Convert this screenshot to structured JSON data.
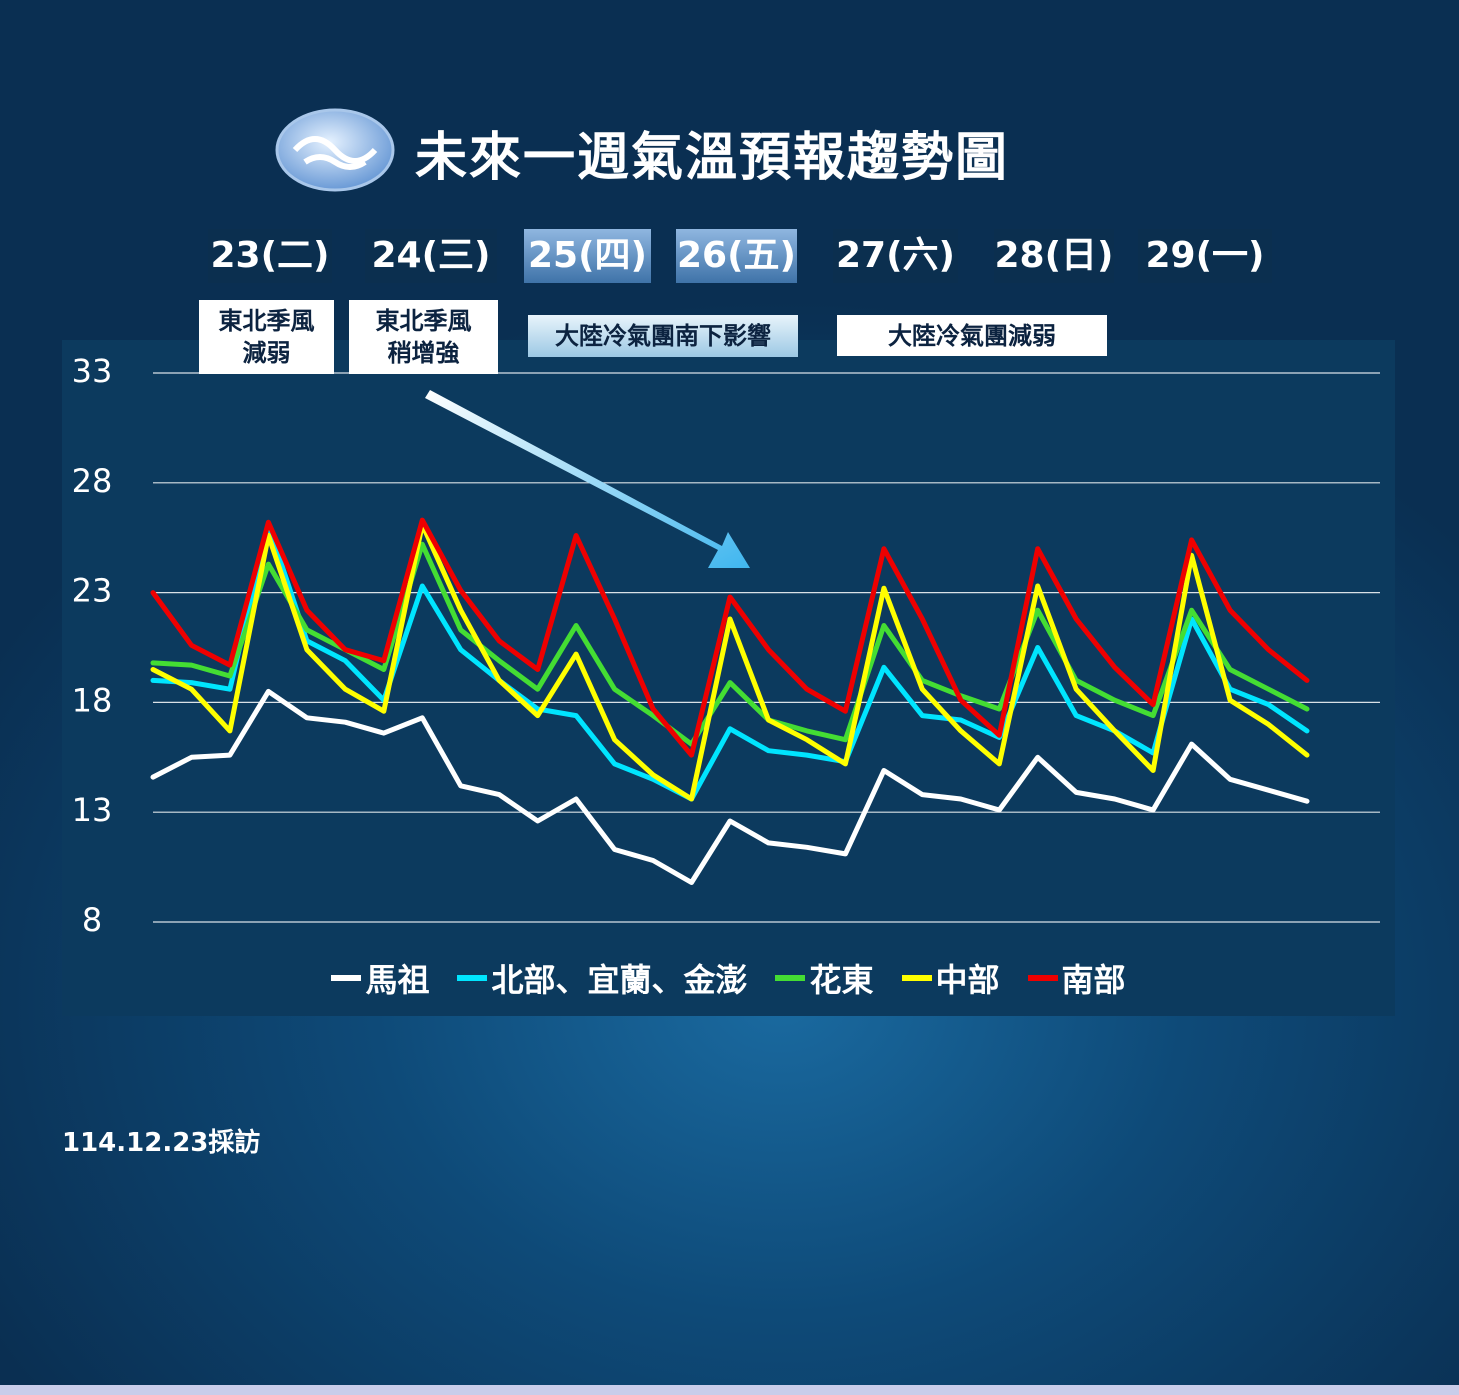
{
  "chart_data": {
    "type": "line",
    "title": "未來一週氣溫預報趨勢圖",
    "day_labels": [
      "23(二)",
      "24(三)",
      "25(四)",
      "26(五)",
      "27(六)",
      "28(日)",
      "29(一)"
    ],
    "annotations": [
      "東北季風\n減弱",
      "東北季風\n稍增強",
      "大陸冷氣團南下影響",
      "大陸冷氣團減弱"
    ],
    "note": "114.12.23採訪",
    "categories": [
      null,
      null,
      null,
      null,
      null,
      null,
      null,
      null,
      null,
      null,
      null,
      null,
      null,
      null,
      null,
      null,
      null,
      null,
      null,
      null,
      null,
      null,
      null,
      null,
      null,
      null,
      null,
      null,
      null,
      null,
      null
    ],
    "ylim": [
      8,
      33
    ],
    "yticks": [
      8,
      13,
      18,
      23,
      28,
      33
    ],
    "grid": true,
    "legend": "bottom",
    "series": [
      {
        "name": "馬祖",
        "color": "#ffffff",
        "values": [
          14.6,
          15.5,
          15.6,
          18.5,
          17.3,
          17.1,
          16.6,
          17.3,
          14.2,
          13.8,
          12.6,
          13.6,
          11.3,
          10.8,
          9.8,
          12.6,
          11.6,
          11.4,
          11.1,
          14.9,
          13.8,
          13.6,
          13.1,
          15.5,
          13.9,
          13.6,
          13.1,
          16.1,
          14.5,
          14.0,
          13.5
        ]
      },
      {
        "name": "北部、宜蘭、金澎",
        "color": "#00e5ff",
        "values": [
          19.0,
          18.9,
          18.6,
          26.1,
          20.8,
          19.9,
          18.1,
          23.3,
          20.4,
          19.0,
          17.7,
          17.4,
          15.2,
          14.5,
          13.6,
          16.8,
          15.8,
          15.6,
          15.3,
          19.6,
          17.4,
          17.2,
          16.4,
          20.5,
          17.4,
          16.7,
          15.7,
          21.8,
          18.6,
          17.9,
          16.7
        ]
      },
      {
        "name": "花東",
        "color": "#44dd33",
        "values": [
          19.8,
          19.7,
          19.2,
          24.3,
          21.3,
          20.4,
          19.5,
          25.2,
          21.3,
          19.9,
          18.6,
          21.5,
          18.6,
          17.4,
          16.1,
          18.9,
          17.2,
          16.7,
          16.3,
          21.5,
          19.0,
          18.3,
          17.7,
          22.2,
          19.0,
          18.1,
          17.4,
          22.2,
          19.5,
          18.6,
          17.7
        ]
      },
      {
        "name": "中部",
        "color": "#ffff00",
        "values": [
          19.5,
          18.6,
          16.7,
          25.6,
          20.4,
          18.6,
          17.6,
          26.1,
          22.2,
          19.0,
          17.4,
          20.2,
          16.3,
          14.7,
          13.6,
          21.8,
          17.2,
          16.3,
          15.2,
          23.2,
          18.6,
          16.7,
          15.2,
          23.3,
          18.6,
          16.7,
          14.9,
          24.7,
          18.1,
          17.0,
          15.6
        ]
      },
      {
        "name": "南部",
        "color": "#ee0000",
        "values": [
          23.0,
          20.6,
          19.7,
          26.2,
          22.2,
          20.4,
          19.9,
          26.3,
          23.1,
          20.8,
          19.5,
          25.6,
          21.8,
          17.7,
          15.6,
          22.8,
          20.4,
          18.6,
          17.6,
          25.0,
          21.8,
          18.1,
          16.5,
          25.0,
          21.8,
          19.6,
          17.9,
          25.4,
          22.2,
          20.4,
          19.0
        ]
      }
    ]
  }
}
